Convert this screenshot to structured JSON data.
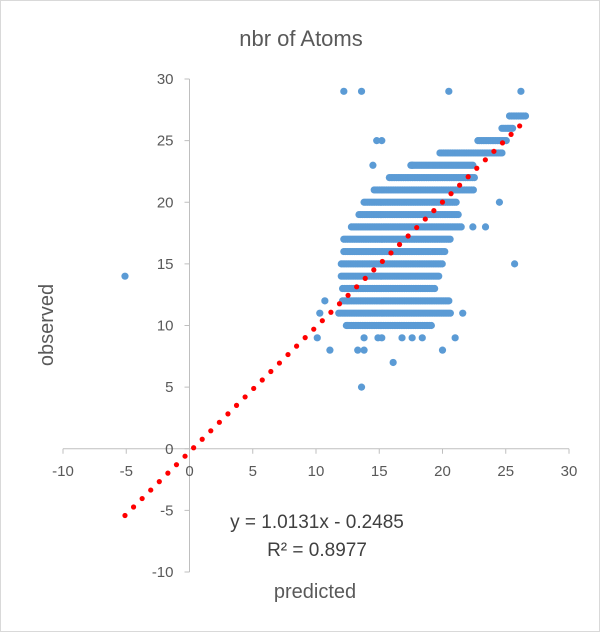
{
  "chart_data": {
    "type": "scatter",
    "title": "nbr of Atoms",
    "xlabel": "predicted",
    "ylabel": "observed",
    "xlim": [
      -10,
      30
    ],
    "ylim": [
      -10,
      30
    ],
    "xticks": [
      "-10",
      "-5",
      "0",
      "5",
      "10",
      "15",
      "20",
      "25",
      "30"
    ],
    "yticks": [
      "-10",
      "-5",
      "0",
      "5",
      "10",
      "15",
      "20",
      "25",
      "30"
    ],
    "grid": false,
    "legend": "none",
    "marker_color": "#5b9bd5",
    "trendline_color": "#ff0000",
    "points": [
      [
        -5.1,
        14
      ],
      [
        12.2,
        29
      ],
      [
        13.6,
        29
      ],
      [
        20.5,
        29
      ],
      [
        26.2,
        29
      ],
      [
        25.7,
        15
      ],
      [
        13.6,
        5
      ],
      [
        16.1,
        7
      ],
      [
        11.1,
        8
      ],
      [
        13.3,
        8
      ],
      [
        13.8,
        8
      ],
      [
        20.0,
        8
      ],
      [
        13.8,
        9
      ],
      [
        14.9,
        9
      ],
      [
        15.2,
        9
      ],
      [
        16.8,
        9
      ],
      [
        17.6,
        9
      ],
      [
        18.4,
        9
      ],
      [
        21.0,
        9
      ],
      [
        21.6,
        11
      ],
      [
        22.4,
        18
      ],
      [
        23.4,
        18
      ],
      [
        24.5,
        20
      ],
      [
        14.5,
        23
      ],
      [
        17.6,
        23
      ],
      [
        15.2,
        25
      ],
      [
        14.8,
        25
      ],
      [
        10.3,
        11
      ],
      [
        10.7,
        12
      ],
      [
        12.5,
        12
      ],
      [
        12.5,
        10
      ],
      [
        10.1,
        9
      ]
    ],
    "bands": [
      {
        "y": 10,
        "x_from": 12.4,
        "x_to": 19.2
      },
      {
        "y": 11,
        "x_from": 11.8,
        "x_to": 20.7
      },
      {
        "y": 12,
        "x_from": 12.1,
        "x_to": 20.5
      },
      {
        "y": 13,
        "x_from": 12.1,
        "x_to": 19.5
      },
      {
        "y": 14,
        "x_from": 12.0,
        "x_to": 19.8
      },
      {
        "y": 15,
        "x_from": 12.0,
        "x_to": 20.1
      },
      {
        "y": 16,
        "x_from": 12.2,
        "x_to": 20.2
      },
      {
        "y": 17,
        "x_from": 12.2,
        "x_to": 20.6
      },
      {
        "y": 18,
        "x_from": 12.8,
        "x_to": 21.5
      },
      {
        "y": 19,
        "x_from": 13.4,
        "x_to": 21.3
      },
      {
        "y": 20,
        "x_from": 13.8,
        "x_to": 21.2
      },
      {
        "y": 21,
        "x_from": 14.6,
        "x_to": 22.5
      },
      {
        "y": 22,
        "x_from": 15.8,
        "x_to": 22.6
      },
      {
        "y": 23,
        "x_from": 17.5,
        "x_to": 22.5
      },
      {
        "y": 24,
        "x_from": 19.8,
        "x_to": 24.8
      },
      {
        "y": 25,
        "x_from": 22.8,
        "x_to": 25.1
      },
      {
        "y": 26,
        "x_from": 24.7,
        "x_to": 25.6
      },
      {
        "y": 27,
        "x_from": 25.3,
        "x_to": 26.6
      }
    ],
    "trendline": {
      "slope": 1.0131,
      "intercept": -0.2485,
      "x_from": -5.1,
      "x_to": 26.1,
      "equation": "y = 1.0131x - 0.2485",
      "r_squared": "R² = 0.8977"
    }
  }
}
